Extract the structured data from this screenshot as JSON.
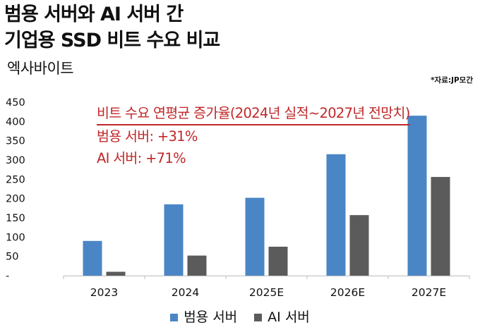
{
  "title_line1": "범용 서버와 AI 서버 간",
  "title_line2": "기업용 SSD 비트 수요 비교",
  "unit_label": "엑사바이트",
  "source": "*자료:JP모간",
  "annotation": {
    "heading": "비트 수요 연평균 증가율(2024년 실적~2027년 전망치)",
    "line1": "범용 서버: +31%",
    "line2": "AI 서버: +71%"
  },
  "chart_data": {
    "type": "bar",
    "categories": [
      "2023",
      "2024",
      "2025E",
      "2026E",
      "2027E"
    ],
    "series": [
      {
        "name": "범용 서버",
        "values": [
          90,
          185,
          202,
          315,
          415
        ],
        "color": "#4a86c5"
      },
      {
        "name": "AI 서버",
        "values": [
          10,
          52,
          75,
          157,
          256
        ],
        "color": "#5b5b5b"
      }
    ],
    "ylim": [
      0,
      450
    ],
    "yticks": [
      "-",
      "50",
      "100",
      "150",
      "200",
      "250",
      "300",
      "350",
      "400",
      "450"
    ],
    "grid": false,
    "legend": "bottom"
  }
}
